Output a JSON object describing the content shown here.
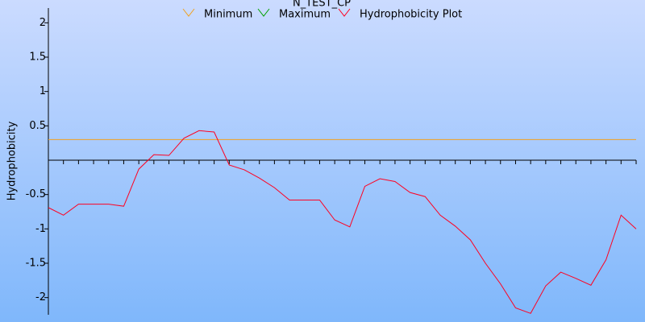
{
  "chart_data": {
    "type": "line",
    "title": "N_TEST_CP",
    "y_label": "Hydrophobicity",
    "categories": [
      null,
      null,
      null,
      null,
      null,
      null,
      null,
      null,
      null,
      null,
      null,
      null,
      null,
      null,
      null,
      null,
      null,
      null,
      null,
      null,
      null,
      null,
      null,
      null,
      null,
      null,
      null,
      null,
      null,
      null,
      null,
      null,
      null,
      null,
      null,
      null,
      null,
      null,
      null,
      null
    ],
    "series": [
      {
        "name": "Minimum",
        "color": "#f0a020",
        "values": [
          0.3,
          0.3,
          0.3,
          0.3,
          0.3,
          0.3,
          0.3,
          0.3,
          0.3,
          0.3,
          0.3,
          0.3,
          0.3,
          0.3,
          0.3,
          0.3,
          0.3,
          0.3,
          0.3,
          0.3,
          0.3,
          0.3,
          0.3,
          0.3,
          0.3,
          0.3,
          0.3,
          0.3,
          0.3,
          0.3,
          0.3,
          0.3,
          0.3,
          0.3,
          0.3,
          0.3,
          0.3,
          0.3,
          0.3,
          0.3
        ]
      },
      {
        "name": "Maximum",
        "color": "#00a000",
        "values": [
          null,
          null,
          null,
          null,
          null,
          null,
          null,
          null,
          null,
          null,
          null,
          null,
          null,
          null,
          null,
          null,
          null,
          null,
          null,
          null,
          null,
          null,
          null,
          null,
          null,
          null,
          null,
          null,
          null,
          null,
          null,
          null,
          null,
          null,
          null,
          null,
          null,
          null,
          null,
          null
        ]
      },
      {
        "name": "Hydrophobicity Plot",
        "color": "#ff0020",
        "values": [
          -0.69,
          -0.8,
          -0.64,
          -0.64,
          -0.64,
          -0.67,
          -0.13,
          0.08,
          0.07,
          0.32,
          0.43,
          0.41,
          -0.07,
          -0.14,
          -0.26,
          -0.4,
          -0.58,
          -0.58,
          -0.58,
          -0.87,
          -0.97,
          -0.38,
          -0.27,
          -0.31,
          -0.47,
          -0.53,
          -0.8,
          -0.96,
          -1.16,
          -1.5,
          -1.8,
          -2.15,
          -2.23,
          -1.83,
          -1.63,
          -1.72,
          -1.82,
          -1.45,
          -0.8,
          -1.0
        ]
      }
    ],
    "ylim": [
      -2.25,
      2.25
    ],
    "yticks": [
      2,
      1.5,
      1,
      0.5,
      -0.5,
      -1,
      -1.5,
      -2
    ]
  }
}
